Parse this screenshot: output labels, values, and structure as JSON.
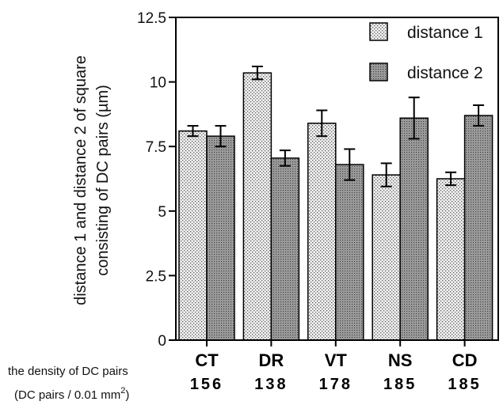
{
  "chart_data": {
    "type": "bar",
    "ylabel_line1": "distance 1 and distance 2 of square",
    "ylabel_line2": "consisting of DC pairs (µm)",
    "ylim": [
      0,
      12.5
    ],
    "yticks": [
      0,
      2.5,
      5,
      7.5,
      10,
      12.5
    ],
    "ytick_labels": [
      "0",
      "2.5",
      "5",
      "7.5",
      "10",
      "12.5"
    ],
    "categories": [
      "CT",
      "DR",
      "VT",
      "NS",
      "CD"
    ],
    "density_values": [
      "156",
      "138",
      "178",
      "185",
      "185"
    ],
    "density_label_line1": "the density of DC pairs",
    "density_label_line2_prefix": "(DC pairs / 0.01 mm",
    "density_label_line2_sup": "2",
    "density_label_line2_suffix": ")",
    "legend_position": "top-right",
    "series": [
      {
        "name": "distance 1",
        "pattern": "light-dots",
        "values": [
          8.1,
          10.35,
          8.4,
          6.4,
          6.25
        ],
        "errors": [
          0.2,
          0.25,
          0.5,
          0.45,
          0.25
        ]
      },
      {
        "name": "distance 2",
        "pattern": "dark-dots",
        "values": [
          7.9,
          7.05,
          6.8,
          8.6,
          8.7
        ],
        "errors": [
          0.4,
          0.3,
          0.6,
          0.8,
          0.4
        ]
      }
    ]
  }
}
